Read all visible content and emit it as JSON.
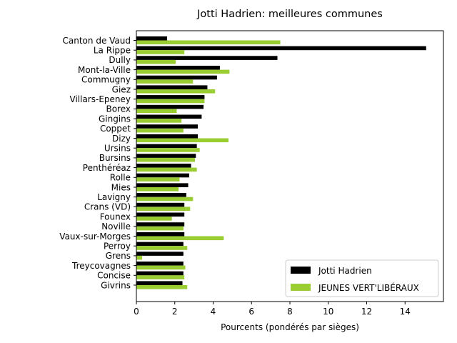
{
  "chart_data": {
    "type": "bar",
    "orientation": "horizontal",
    "title": "Jotti Hadrien: meilleures communes",
    "xlabel": "Pourcents (pondérés par sièges)",
    "ylabel": "",
    "xlim": [
      0,
      16
    ],
    "xticks": [
      0,
      2,
      4,
      6,
      8,
      10,
      12,
      14
    ],
    "grid": false,
    "legend_position": "lower-right",
    "categories": [
      "Canton de Vaud",
      "La Rippe",
      "Dully",
      "Mont-la-Ville",
      "Commugny",
      "Giez",
      "Villars-Epeney",
      "Borex",
      "Gingins",
      "Coppet",
      "Dizy",
      "Ursins",
      "Bursins",
      "Penthéréaz",
      "Rolle",
      "Mies",
      "Lavigny",
      "Crans (VD)",
      "Founex",
      "Noville",
      "Vaux-sur-Morges",
      "Perroy",
      "Grens",
      "Treycovagnes",
      "Concise",
      "Givrins"
    ],
    "series": [
      {
        "name": "Jotti Hadrien",
        "color": "#000000",
        "values": [
          1.6,
          15.1,
          7.35,
          4.35,
          4.2,
          3.7,
          3.55,
          3.5,
          3.4,
          3.2,
          3.2,
          3.15,
          3.1,
          2.85,
          2.75,
          2.7,
          2.6,
          2.5,
          2.5,
          2.5,
          2.5,
          2.45,
          2.45,
          2.45,
          2.45,
          2.4
        ]
      },
      {
        "name": "JEUNES VERT'LIBÉRAUX",
        "color": "#9acd32",
        "values": [
          7.5,
          2.5,
          2.05,
          4.85,
          2.95,
          4.1,
          3.55,
          2.1,
          2.35,
          2.45,
          4.8,
          3.3,
          3.05,
          3.15,
          2.25,
          2.2,
          2.95,
          2.8,
          1.85,
          2.45,
          4.55,
          2.65,
          0.3,
          2.55,
          2.5,
          2.65
        ]
      }
    ]
  }
}
